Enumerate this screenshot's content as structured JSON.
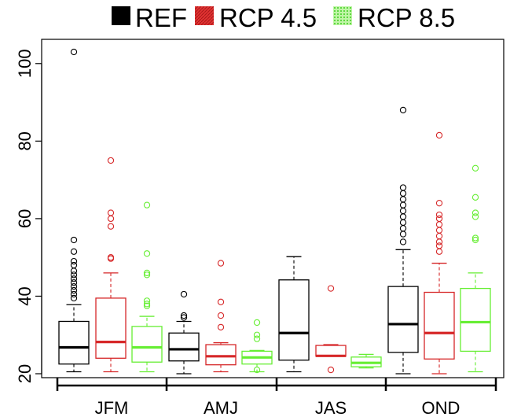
{
  "chart_data": {
    "type": "boxplot",
    "title": "",
    "xlabel": "",
    "ylabel": "",
    "ylim": [
      18,
      105
    ],
    "yticks": [
      "20",
      "40",
      "60",
      "80",
      "100"
    ],
    "categories": [
      "JFM",
      "AMJ",
      "JAS",
      "OND"
    ],
    "legend_position": "top",
    "series": [
      {
        "name": "REF",
        "color": "#000000",
        "legend_swatch": "solid",
        "boxes": [
          {
            "whisker_low": 20.5,
            "q1": 22.5,
            "median": 26.8,
            "q3": 33.5,
            "whisker_high": 37.8,
            "outliers": [
              103,
              54.5,
              51.5,
              49,
              48,
              46.5,
              45.5,
              44.5,
              43.5,
              42.5,
              41.5,
              40.5,
              39.5
            ]
          },
          {
            "whisker_low": 20,
            "q1": 23.3,
            "median": 26.3,
            "q3": 30.5,
            "whisker_high": 33.5,
            "outliers": [
              40.5,
              35,
              34.5
            ]
          },
          {
            "whisker_low": 20.5,
            "q1": 23.5,
            "median": 30.5,
            "q3": 44.2,
            "whisker_high": 50.2,
            "outliers": []
          },
          {
            "whisker_low": 20,
            "q1": 25.5,
            "median": 32.8,
            "q3": 42.5,
            "whisker_high": 52,
            "outliers": [
              88,
              68,
              66.5,
              65,
              63.5,
              62,
              60.5,
              59,
              57.5,
              56,
              54
            ]
          }
        ]
      },
      {
        "name": "RCP 4.5",
        "color": "#d62728",
        "legend_swatch": "hatched",
        "boxes": [
          {
            "whisker_low": 20.5,
            "q1": 24,
            "median": 28.2,
            "q3": 39.5,
            "whisker_high": 46,
            "outliers": [
              75,
              61.5,
              60,
              58,
              50,
              49.7
            ]
          },
          {
            "whisker_low": 20.5,
            "q1": 22.3,
            "median": 24.5,
            "q3": 27.5,
            "whisker_high": 28,
            "outliers": [
              48.5,
              38.5,
              35,
              32
            ]
          },
          {
            "whisker_low": 24.5,
            "q1": 24.5,
            "median": 24.6,
            "q3": 27.3,
            "whisker_high": 27.5,
            "outliers": [
              42,
              21
            ]
          },
          {
            "whisker_low": 20,
            "q1": 23.8,
            "median": 30.5,
            "q3": 41,
            "whisker_high": 48.5,
            "outliers": [
              81.5,
              64,
              61,
              60,
              58.5,
              57,
              55.5,
              54,
              53,
              51.5
            ]
          }
        ]
      },
      {
        "name": "RCP 8.5",
        "color": "#66ee33",
        "legend_swatch": "dotted",
        "boxes": [
          {
            "whisker_low": 20.5,
            "q1": 23,
            "median": 26.8,
            "q3": 32.2,
            "whisker_high": 34.8,
            "outliers": [
              63.5,
              51,
              46,
              45.5,
              38.8,
              38,
              37.5
            ]
          },
          {
            "whisker_low": 20.5,
            "q1": 22.5,
            "median": 24.2,
            "q3": 25.8,
            "whisker_high": 26,
            "outliers": [
              33.2,
              30,
              29,
              21
            ]
          },
          {
            "whisker_low": 21.5,
            "q1": 21.8,
            "median": 22.8,
            "q3": 24.3,
            "whisker_high": 25,
            "outliers": []
          },
          {
            "whisker_low": 20.5,
            "q1": 25.8,
            "median": 33.3,
            "q3": 42,
            "whisker_high": 46,
            "outliers": [
              73,
              65.5,
              61.5,
              60.5,
              55,
              54.5
            ]
          }
        ]
      }
    ]
  }
}
